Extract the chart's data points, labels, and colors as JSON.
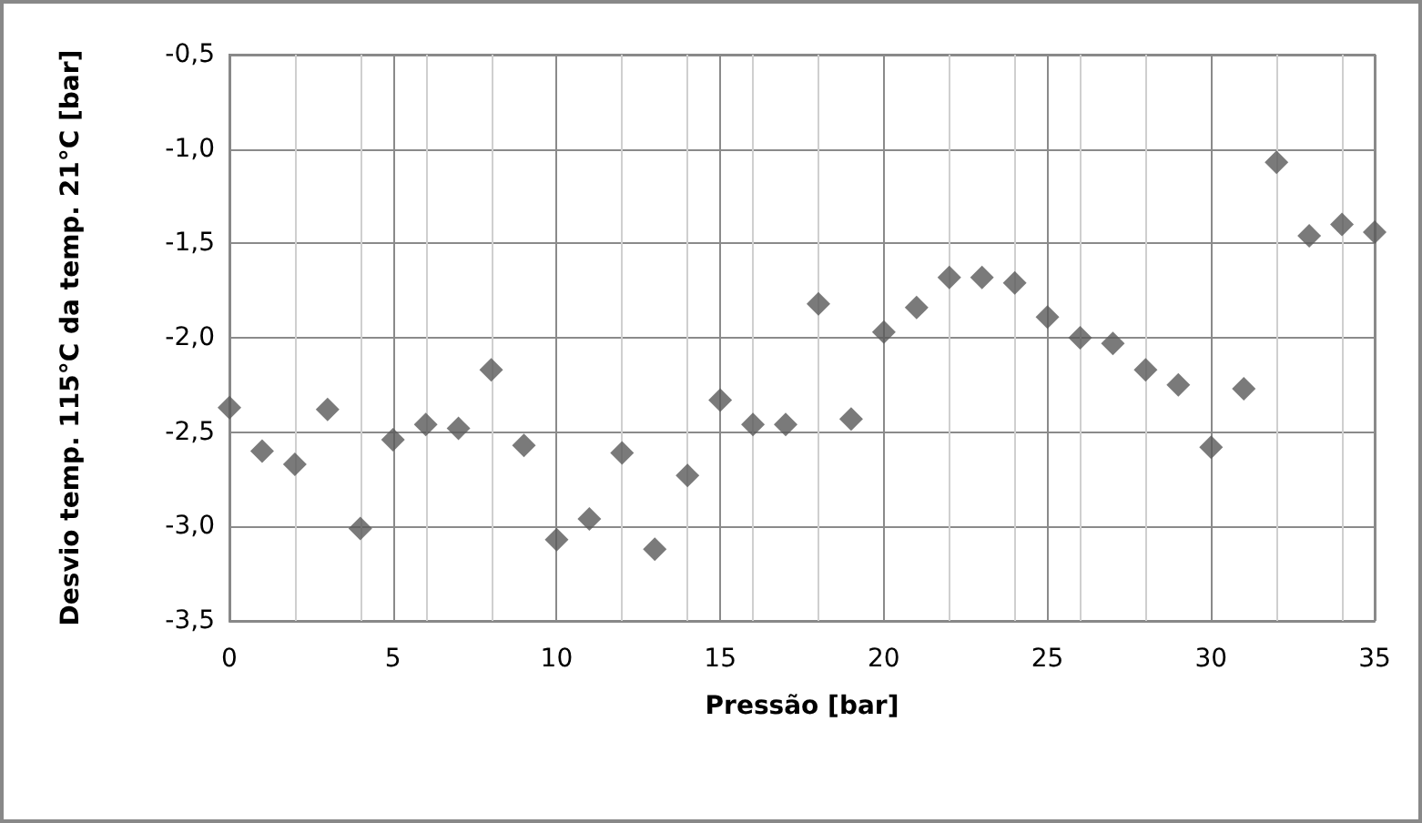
{
  "chart_data": {
    "type": "scatter",
    "xlabel": "Pressão [bar]",
    "ylabel": "Desvio temp. 115°C da temp. 21°C [bar]",
    "x": [
      0,
      1,
      2,
      3,
      4,
      5,
      6,
      7,
      8,
      9,
      10,
      11,
      12,
      13,
      14,
      15,
      16,
      17,
      18,
      19,
      20,
      21,
      22,
      23,
      24,
      25,
      26,
      27,
      28,
      29,
      30,
      31,
      32,
      33,
      34,
      35
    ],
    "series": [
      {
        "color": "#595959",
        "values": [
          -2.37,
          -2.6,
          -2.67,
          -2.38,
          -3.01,
          -2.54,
          -2.46,
          -2.48,
          -2.17,
          -2.57,
          -3.07,
          -2.96,
          -2.61,
          -3.12,
          -2.73,
          -2.33,
          -2.46,
          -2.46,
          -1.82,
          -2.43,
          -1.97,
          -1.84,
          -1.68,
          -1.68,
          -1.71,
          -1.89,
          -2.0,
          -2.03,
          -2.17,
          -2.25,
          -2.58,
          -2.27,
          -1.07,
          -1.46,
          -1.4,
          -1.44
        ]
      }
    ],
    "xlim": [
      0,
      35
    ],
    "xticks": [
      0,
      5,
      10,
      15,
      20,
      25,
      30,
      35
    ],
    "ylim": [
      -3.5,
      -0.5
    ],
    "yticks": [
      {
        "value": -3.5,
        "label": "-3,5"
      },
      {
        "value": -3.0,
        "label": "-3,0"
      },
      {
        "value": -2.5,
        "label": "-2,5"
      },
      {
        "value": -2.0,
        "label": "-2,0"
      },
      {
        "value": -1.5,
        "label": "-1,5"
      },
      {
        "value": -1.0,
        "label": "-1,0"
      },
      {
        "value": -0.5,
        "label": "-0,5"
      }
    ],
    "grid": true,
    "marker": "diamond"
  }
}
